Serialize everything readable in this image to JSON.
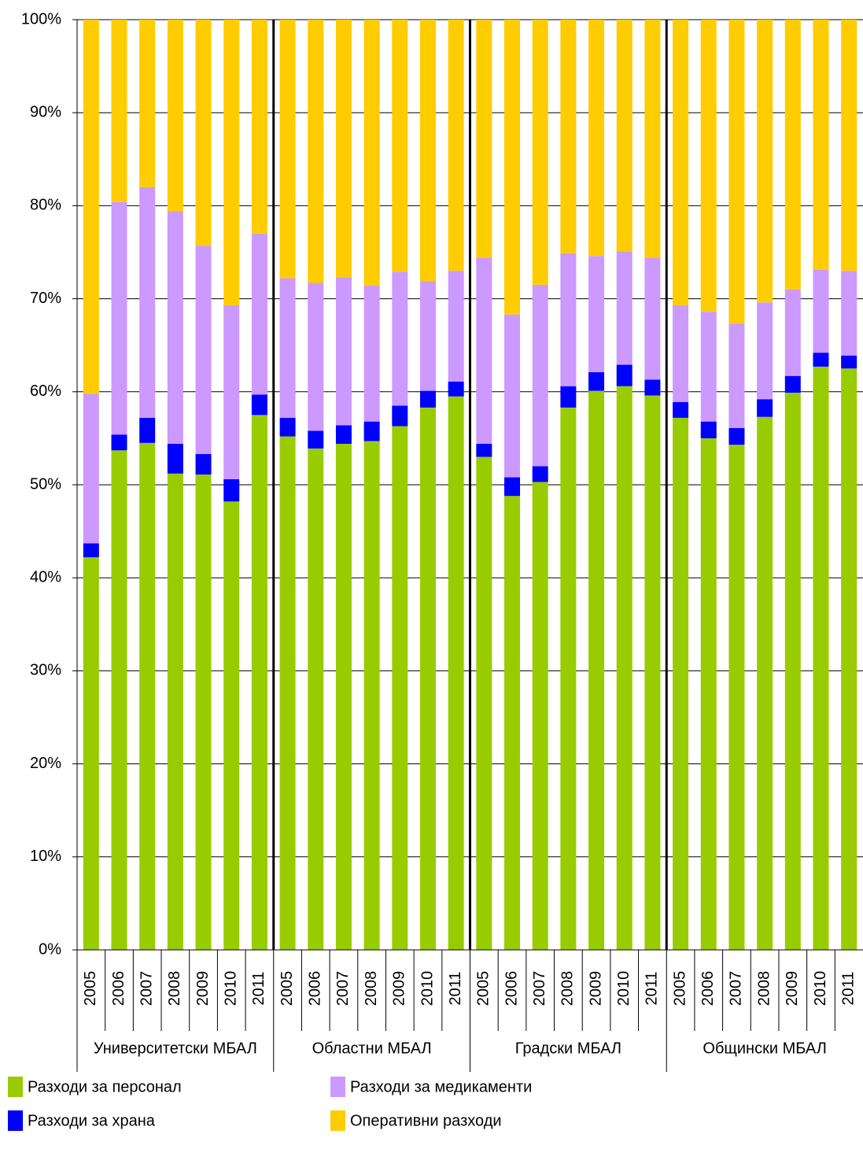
{
  "chart_data": {
    "type": "stacked_bar",
    "categories": [
      "2005",
      "2006",
      "2007",
      "2008",
      "2009",
      "2010",
      "2011",
      "2005",
      "2006",
      "2007",
      "2008",
      "2009",
      "2010",
      "2011",
      "2005",
      "2006",
      "2007",
      "2008",
      "2009",
      "2010",
      "2011",
      "2005",
      "2006",
      "2007",
      "2008",
      "2009",
      "2010",
      "2011"
    ],
    "group_labels": [
      "Университетски МБАЛ",
      "Областни МБАЛ",
      "Градски МБАЛ",
      "Общински МБАЛ"
    ],
    "series": [
      {
        "name": "Разходи за персонал",
        "color": "#99cc00",
        "values": [
          42.2,
          53.7,
          54.5,
          51.2,
          51.1,
          48.2,
          57.5,
          55.2,
          53.9,
          54.4,
          54.7,
          56.3,
          58.3,
          59.5,
          53.0,
          48.8,
          50.3,
          58.3,
          60.1,
          60.6,
          59.6,
          57.2,
          55.0,
          54.3,
          57.3,
          59.9,
          62.7,
          62.5
        ]
      },
      {
        "name": "Разходи за храна",
        "color": "#0000ff",
        "values": [
          1.5,
          1.7,
          2.7,
          3.2,
          2.2,
          2.4,
          2.2,
          2.0,
          1.9,
          2.0,
          2.1,
          2.2,
          1.8,
          1.6,
          1.4,
          2.0,
          1.7,
          2.3,
          2.0,
          2.3,
          1.7,
          1.7,
          1.8,
          1.8,
          1.9,
          1.8,
          1.5,
          1.4
        ]
      },
      {
        "name": "Разходи за медикаменти",
        "color": "#cc99ff",
        "values": [
          16.1,
          25.0,
          24.8,
          25.0,
          22.4,
          18.7,
          17.3,
          15.0,
          15.9,
          15.9,
          14.6,
          14.4,
          11.8,
          11.9,
          20.0,
          17.5,
          19.5,
          14.3,
          12.5,
          12.2,
          13.1,
          10.4,
          11.8,
          11.2,
          10.4,
          9.3,
          8.9,
          9.1
        ]
      },
      {
        "name": "Оперативни разходи",
        "color": "#ffcc00",
        "values": [
          40.2,
          19.6,
          18.0,
          20.6,
          24.3,
          30.7,
          23.0,
          27.8,
          28.3,
          27.7,
          28.6,
          27.1,
          28.1,
          27.0,
          25.6,
          31.7,
          28.5,
          25.1,
          25.4,
          24.9,
          25.6,
          30.7,
          31.4,
          32.7,
          30.4,
          29.0,
          26.9,
          27.0
        ]
      }
    ],
    "ylim": [
      0,
      100
    ],
    "yticks": [
      {
        "value": 0,
        "label": "0%"
      },
      {
        "value": 10,
        "label": "10%"
      },
      {
        "value": 20,
        "label": "20%"
      },
      {
        "value": 30,
        "label": "30%"
      },
      {
        "value": 40,
        "label": "40%"
      },
      {
        "value": 50,
        "label": "50%"
      },
      {
        "value": 60,
        "label": "60%"
      },
      {
        "value": 70,
        "label": "70%"
      },
      {
        "value": 80,
        "label": "80%"
      },
      {
        "value": 90,
        "label": "90%"
      },
      {
        "value": 100,
        "label": "100%"
      }
    ],
    "grid": true
  }
}
